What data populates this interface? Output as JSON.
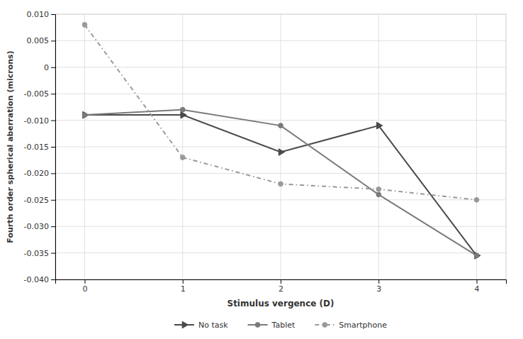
{
  "chart_data": {
    "type": "line",
    "x": [
      0,
      1,
      2,
      3,
      4
    ],
    "series": [
      {
        "name": "No task",
        "color": "#4a4a4a",
        "marker": "triangle-right",
        "line_style": "solid",
        "values": [
          -0.009,
          -0.009,
          -0.016,
          -0.011,
          -0.0355
        ]
      },
      {
        "name": "Tablet",
        "color": "#7a7a7a",
        "marker": "circle",
        "line_style": "solid",
        "values": [
          -0.009,
          -0.008,
          -0.011,
          -0.024,
          -0.0355
        ]
      },
      {
        "name": "Smartphone",
        "color": "#999999",
        "marker": "circle",
        "line_style": "dashdot",
        "values": [
          0.008,
          -0.017,
          -0.022,
          -0.023,
          -0.025
        ]
      }
    ],
    "xlabel": "Stimulus vergence (D)",
    "ylabel": "Fourth order spherical aberration (microns)",
    "xlim": [
      -0.3,
      4.3
    ],
    "ylim": [
      -0.04,
      0.01
    ],
    "xticks": [
      0,
      1,
      2,
      3,
      4
    ],
    "yticks": [
      {
        "value": -0.04,
        "label": "-0.040"
      },
      -0.035,
      {
        "value": -0.03,
        "label": "-0.030"
      },
      -0.025,
      {
        "value": -0.02,
        "label": "-0.020"
      },
      -0.015,
      {
        "value": -0.01,
        "label": "-0.010"
      },
      -0.005,
      0,
      0.005,
      {
        "value": 0.01,
        "label": "0.010"
      }
    ],
    "grid": true,
    "legend": "bottom"
  }
}
